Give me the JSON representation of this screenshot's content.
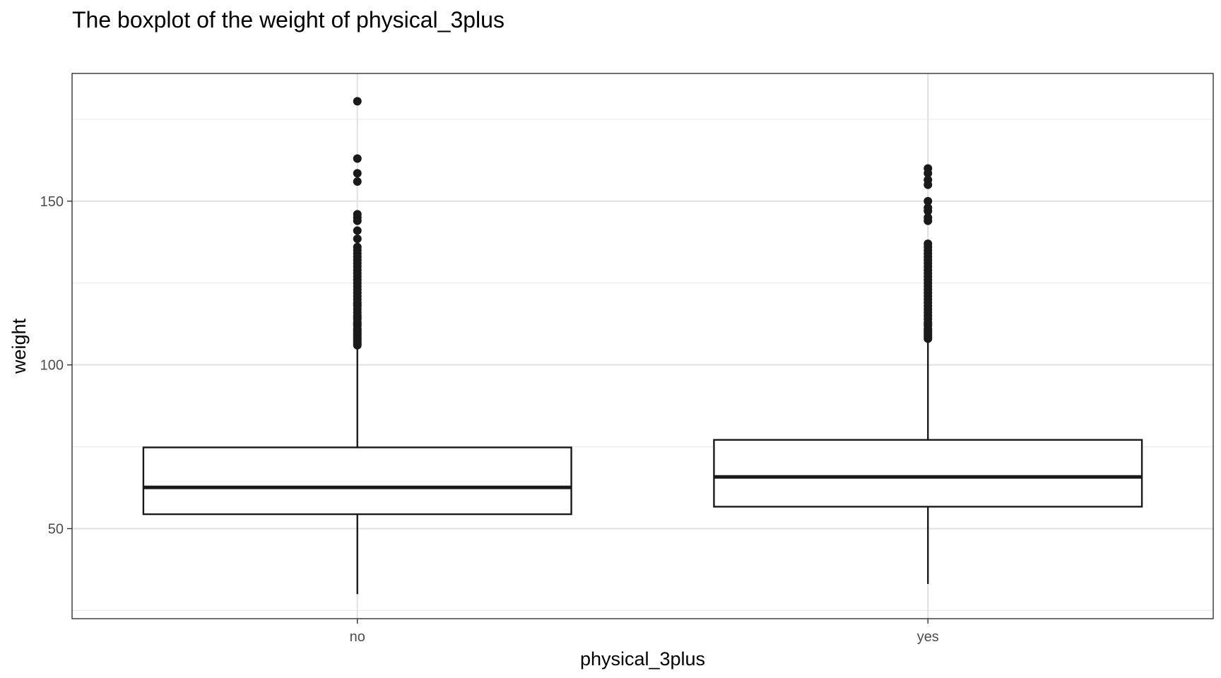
{
  "chart_data": {
    "type": "boxplot",
    "title": "The boxplot of the weight of physical_3plus",
    "xlabel": "physical_3plus",
    "ylabel": "weight",
    "categories": [
      "no",
      "yes"
    ],
    "ylim": [
      22.5,
      189
    ],
    "y_ticks": [
      50,
      100,
      150
    ],
    "y_minor_ticks": [
      25,
      75,
      125,
      175
    ],
    "grid": true,
    "boxes": [
      {
        "category": "no",
        "whisker_low": 30,
        "q1": 54.4,
        "median": 62.6,
        "q3": 74.8,
        "whisker_high": 105.5,
        "outliers": [
          106,
          106.5,
          107,
          107.5,
          108,
          108.5,
          109,
          109.5,
          110,
          110.5,
          111,
          112,
          112.5,
          113,
          114,
          114.5,
          115,
          116,
          117,
          118,
          118.5,
          119,
          120,
          121,
          122,
          123,
          124,
          125,
          126,
          127,
          128,
          129,
          130,
          131,
          132,
          133,
          134,
          135,
          136,
          138.5,
          141,
          144,
          145,
          146,
          156,
          158.5,
          163,
          180.5
        ]
      },
      {
        "category": "yes",
        "whisker_low": 33.1,
        "q1": 56.7,
        "median": 65.8,
        "q3": 77.1,
        "whisker_high": 107.5,
        "outliers": [
          108,
          108.5,
          109,
          109.5,
          110,
          110.5,
          111,
          112,
          112.5,
          113,
          114,
          115,
          116,
          117,
          118,
          119,
          120,
          121,
          122,
          123,
          124,
          125,
          126,
          127,
          128,
          129,
          130,
          131,
          132,
          133,
          134,
          135,
          136,
          137,
          144,
          145,
          147,
          148,
          150,
          155,
          156.5,
          158.5,
          160
        ]
      }
    ]
  }
}
